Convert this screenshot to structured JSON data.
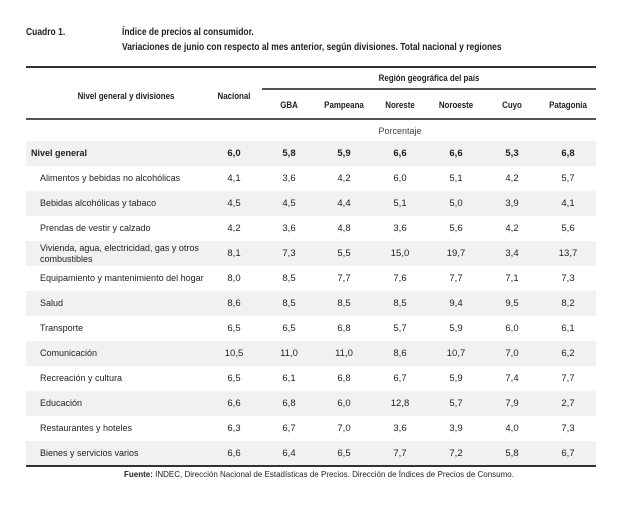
{
  "caption": {
    "label": "Cuadro 1.",
    "title": "Índice de precios al consumidor.",
    "subtitle": "Variaciones de junio con respecto al mes anterior, según divisiones. Total nacional y regiones"
  },
  "header": {
    "row_label": "Nivel general y divisiones",
    "national": "Nacional",
    "region_group": "Región geográfica del país",
    "regions": [
      "GBA",
      "Pampeana",
      "Noreste",
      "Noroeste",
      "Cuyo",
      "Patagonia"
    ],
    "unit": "Porcentaje"
  },
  "rows": [
    {
      "label": "Nivel general",
      "values": [
        "6,0",
        "5,8",
        "5,9",
        "6,6",
        "6,6",
        "5,3",
        "6,8"
      ]
    },
    {
      "label": "Alimentos y bebidas no alcohólicas",
      "values": [
        "4,1",
        "3,6",
        "4,2",
        "6,0",
        "5,1",
        "4,2",
        "5,7"
      ]
    },
    {
      "label": "Bebidas alcohólicas y tabaco",
      "values": [
        "4,5",
        "4,5",
        "4,4",
        "5,1",
        "5,0",
        "3,9",
        "4,1"
      ]
    },
    {
      "label": "Prendas de vestir y calzado",
      "values": [
        "4,2",
        "3,6",
        "4,8",
        "3,6",
        "5,6",
        "4,2",
        "5,6"
      ]
    },
    {
      "label": "Vivienda, agua, electricidad, gas y otros combustibles",
      "values": [
        "8,1",
        "7,3",
        "5,5",
        "15,0",
        "19,7",
        "3,4",
        "13,7"
      ]
    },
    {
      "label": "Equipamiento y mantenimiento del hogar",
      "values": [
        "8,0",
        "8,5",
        "7,7",
        "7,6",
        "7,7",
        "7,1",
        "7,3"
      ]
    },
    {
      "label": "Salud",
      "values": [
        "8,6",
        "8,5",
        "8,5",
        "8,5",
        "9,4",
        "9,5",
        "8,2"
      ]
    },
    {
      "label": "Transporte",
      "values": [
        "6,5",
        "6,5",
        "6,8",
        "5,7",
        "5,9",
        "6,0",
        "6,1"
      ]
    },
    {
      "label": "Comunicación",
      "values": [
        "10,5",
        "11,0",
        "11,0",
        "8,6",
        "10,7",
        "7,0",
        "6,2"
      ]
    },
    {
      "label": "Recreación y cultura",
      "values": [
        "6,5",
        "6,1",
        "6,8",
        "6,7",
        "5,9",
        "7,4",
        "7,7"
      ]
    },
    {
      "label": "Educación",
      "values": [
        "6,6",
        "6,8",
        "6,0",
        "12,8",
        "5,7",
        "7,9",
        "2,7"
      ]
    },
    {
      "label": "Restaurantes y hoteles",
      "values": [
        "6,3",
        "6,7",
        "7,0",
        "3,6",
        "3,9",
        "4,0",
        "7,3"
      ]
    },
    {
      "label": "Bienes y servicios varios",
      "values": [
        "6,6",
        "6,4",
        "6,5",
        "7,7",
        "7,2",
        "5,8",
        "6,7"
      ]
    }
  ],
  "source": {
    "label": "Fuente:",
    "text": " INDEC, Dirección Nacional de Estadísticas de Precios. Dirección de Índices de Precios de Consumo."
  }
}
